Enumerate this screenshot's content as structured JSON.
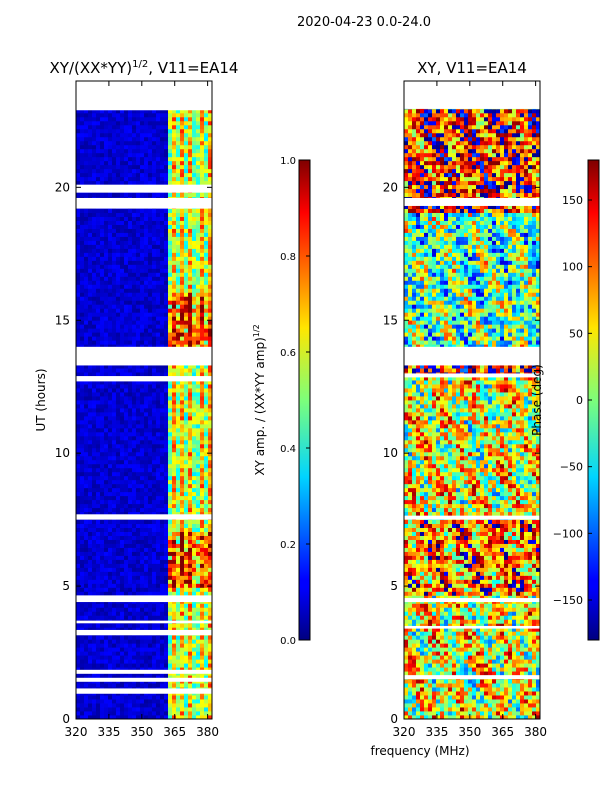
{
  "figure": {
    "suptitle": "2020-04-23 0.0-24.0",
    "shared_xlabel": "frequency (MHz)"
  },
  "chart_data": [
    {
      "type": "heatmap",
      "title_main": "XY/(XX*YY)",
      "title_sup": "1/2",
      "title_rest": ", V11=EA14",
      "ylabel": "UT (hours)",
      "xlim": [
        320,
        382
      ],
      "ylim": [
        0,
        24
      ],
      "xticks": [
        320,
        335,
        350,
        365,
        380
      ],
      "yticks": [
        0,
        5,
        10,
        15,
        20
      ],
      "flagged_bands_hours": [
        [
          0.95,
          1.15
        ],
        [
          1.4,
          1.55
        ],
        [
          1.7,
          1.85
        ],
        [
          3.15,
          3.35
        ],
        [
          3.6,
          3.7
        ],
        [
          4.4,
          4.65
        ],
        [
          7.5,
          7.7
        ],
        [
          12.7,
          12.9
        ],
        [
          13.3,
          14.0
        ],
        [
          19.2,
          19.6
        ],
        [
          19.8,
          20.1
        ],
        [
          22.9,
          24.0
        ]
      ],
      "colorbar": {
        "label_main": "XY amp. / (XX*YY amp)",
        "label_sup": "1/2",
        "min": 0.0,
        "max": 1.0,
        "ticks": [
          "0.0",
          "0.2",
          "0.4",
          "0.6",
          "0.8",
          "1.0"
        ]
      }
    },
    {
      "type": "heatmap",
      "title": "XY, V11=EA14",
      "xlim": [
        320,
        382
      ],
      "ylim": [
        0,
        24
      ],
      "xticks": [
        320,
        335,
        350,
        365,
        380
      ],
      "yticks": [
        0,
        5,
        10,
        15,
        20
      ],
      "flagged_bands_hours": [
        [
          1.5,
          1.65
        ],
        [
          3.4,
          3.5
        ],
        [
          4.4,
          4.55
        ],
        [
          7.5,
          7.65
        ],
        [
          12.85,
          13.0
        ],
        [
          13.3,
          14.0
        ],
        [
          19.3,
          19.6
        ],
        [
          22.95,
          24.0
        ]
      ],
      "colorbar": {
        "label": "Phase (deg)",
        "min": -180,
        "max": 180,
        "ticks": [
          "150",
          "100",
          "50",
          "0",
          "−50",
          "−100",
          "−150"
        ],
        "tick_values": [
          150,
          100,
          50,
          0,
          -50,
          -100,
          -150
        ]
      }
    }
  ]
}
